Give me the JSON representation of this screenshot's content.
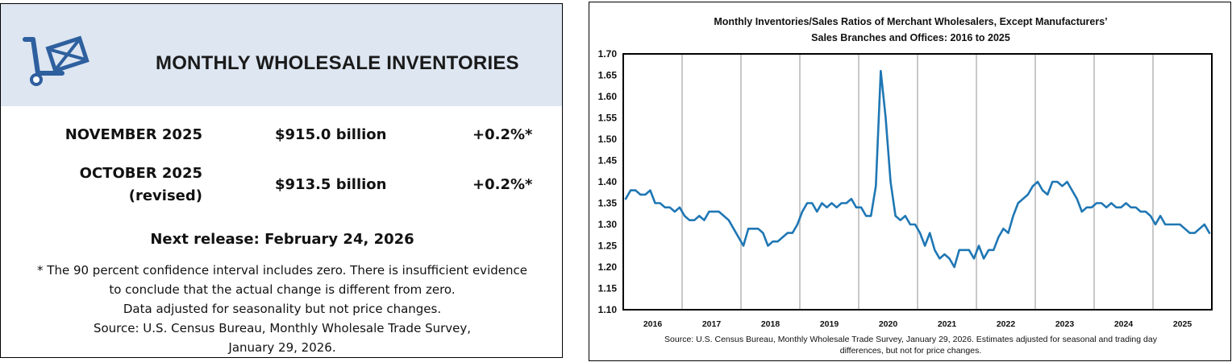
{
  "summary": {
    "title": "MONTHLY WHOLESALE INVENTORIES",
    "rows": [
      {
        "label": "NOVEMBER 2025",
        "label2": "",
        "value": "$915.0 billion",
        "change": "+0.2%*"
      },
      {
        "label": "OCTOBER 2025",
        "label2": "(revised)",
        "value": "$913.5 billion",
        "change": "+0.2%*"
      }
    ],
    "next_release": "Next release: February 24, 2026",
    "notes": [
      "* The 90 percent confidence interval includes zero. There is insufficient evidence",
      "to conclude that the actual change is different from zero.",
      "Data adjusted for seasonality but not price changes.",
      "Source: U.S. Census Bureau, Monthly Wholesale Trade Survey,",
      "January 29, 2026."
    ],
    "colors": {
      "header_bg": "#dde6f1",
      "logo": "#2e5f9e"
    }
  },
  "chart_data": {
    "type": "line",
    "title_lines": [
      "Monthly Inventories/Sales Ratios of Merchant Wholesalers, Except Manufacturers’",
      "Sales Branches and Offices: 2016 to 2025"
    ],
    "source_lines": [
      "Source: U.S. Census Bureau, Monthly Wholesale Trade Survey, January 29, 2026. Estimates adjusted for seasonal and trading day",
      "differences, but not for price changes."
    ],
    "ylim": [
      1.1,
      1.7
    ],
    "yticks": [
      "1.70",
      "1.65",
      "1.60",
      "1.55",
      "1.50",
      "1.45",
      "1.40",
      "1.35",
      "1.30",
      "1.25",
      "1.20",
      "1.15",
      "1.10"
    ],
    "years": [
      "2016",
      "2017",
      "2018",
      "2019",
      "2020",
      "2021",
      "2022",
      "2023",
      "2024",
      "2025"
    ],
    "line_color": "#1f77b4",
    "series": [
      {
        "name": "Inventories/Sales Ratio",
        "start": "2016-01",
        "values": [
          1.36,
          1.38,
          1.38,
          1.37,
          1.37,
          1.38,
          1.35,
          1.35,
          1.34,
          1.34,
          1.33,
          1.34,
          1.32,
          1.31,
          1.31,
          1.32,
          1.31,
          1.33,
          1.33,
          1.33,
          1.32,
          1.31,
          1.29,
          1.27,
          1.25,
          1.29,
          1.29,
          1.29,
          1.28,
          1.25,
          1.26,
          1.26,
          1.27,
          1.28,
          1.28,
          1.3,
          1.33,
          1.35,
          1.35,
          1.33,
          1.35,
          1.34,
          1.35,
          1.34,
          1.35,
          1.35,
          1.36,
          1.34,
          1.34,
          1.32,
          1.32,
          1.39,
          1.66,
          1.55,
          1.4,
          1.32,
          1.31,
          1.32,
          1.3,
          1.3,
          1.28,
          1.25,
          1.28,
          1.24,
          1.22,
          1.23,
          1.22,
          1.2,
          1.24,
          1.24,
          1.24,
          1.22,
          1.25,
          1.22,
          1.24,
          1.24,
          1.27,
          1.29,
          1.28,
          1.32,
          1.35,
          1.36,
          1.37,
          1.39,
          1.4,
          1.38,
          1.37,
          1.4,
          1.4,
          1.39,
          1.4,
          1.38,
          1.36,
          1.33,
          1.34,
          1.34,
          1.35,
          1.35,
          1.34,
          1.35,
          1.34,
          1.34,
          1.35,
          1.34,
          1.34,
          1.33,
          1.33,
          1.32,
          1.3,
          1.32,
          1.3,
          1.3,
          1.3,
          1.3,
          1.29,
          1.28,
          1.28,
          1.29,
          1.3,
          1.28
        ]
      }
    ]
  }
}
